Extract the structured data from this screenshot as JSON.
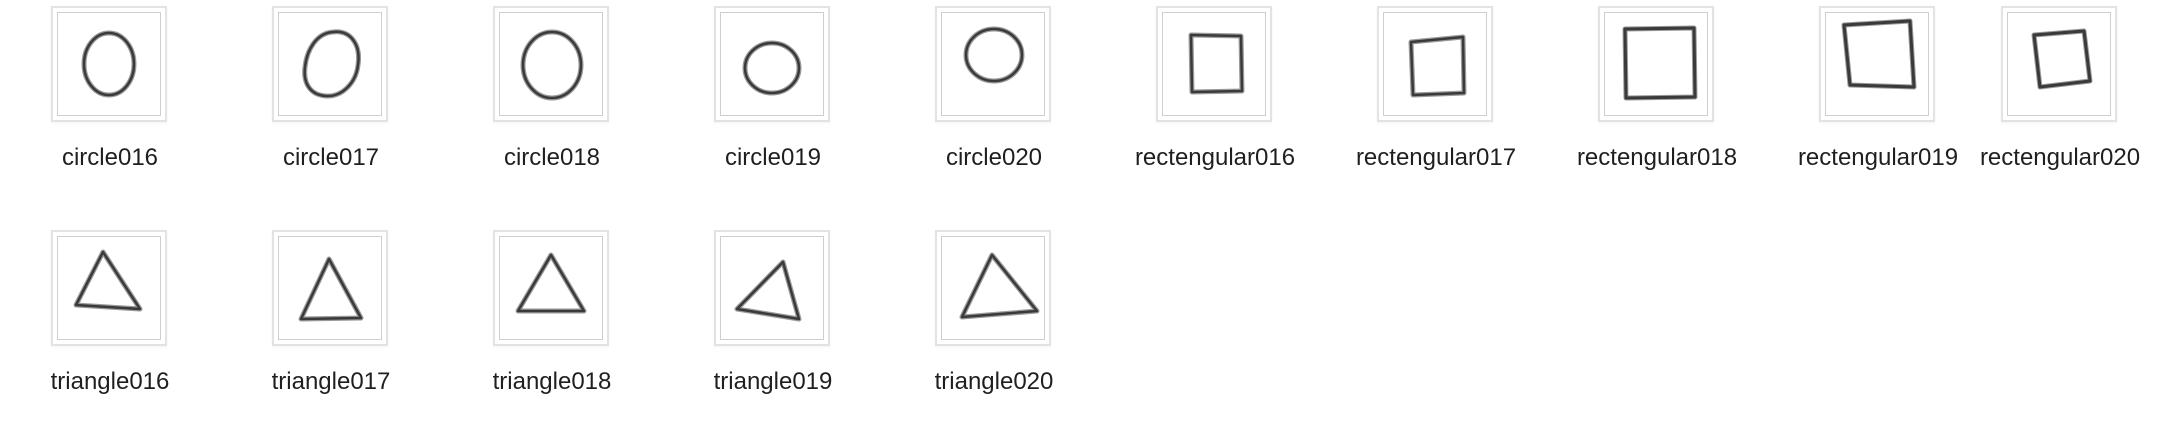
{
  "files": [
    {
      "name": "circle016",
      "icon": "circle-drawing"
    },
    {
      "name": "circle017",
      "icon": "circle-drawing"
    },
    {
      "name": "circle018",
      "icon": "circle-drawing"
    },
    {
      "name": "circle019",
      "icon": "circle-drawing"
    },
    {
      "name": "circle020",
      "icon": "circle-drawing"
    },
    {
      "name": "rectengular016",
      "icon": "rectangle-drawing"
    },
    {
      "name": "rectengular017",
      "icon": "rectangle-drawing"
    },
    {
      "name": "rectengular018",
      "icon": "rectangle-drawing"
    },
    {
      "name": "rectengular019",
      "icon": "rectangle-drawing"
    },
    {
      "name": "rectengular020",
      "icon": "rectangle-drawing"
    },
    {
      "name": "triangle016",
      "icon": "triangle-drawing"
    },
    {
      "name": "triangle017",
      "icon": "triangle-drawing"
    },
    {
      "name": "triangle018",
      "icon": "triangle-drawing"
    },
    {
      "name": "triangle019",
      "icon": "triangle-drawing"
    },
    {
      "name": "triangle020",
      "icon": "triangle-drawing"
    }
  ]
}
